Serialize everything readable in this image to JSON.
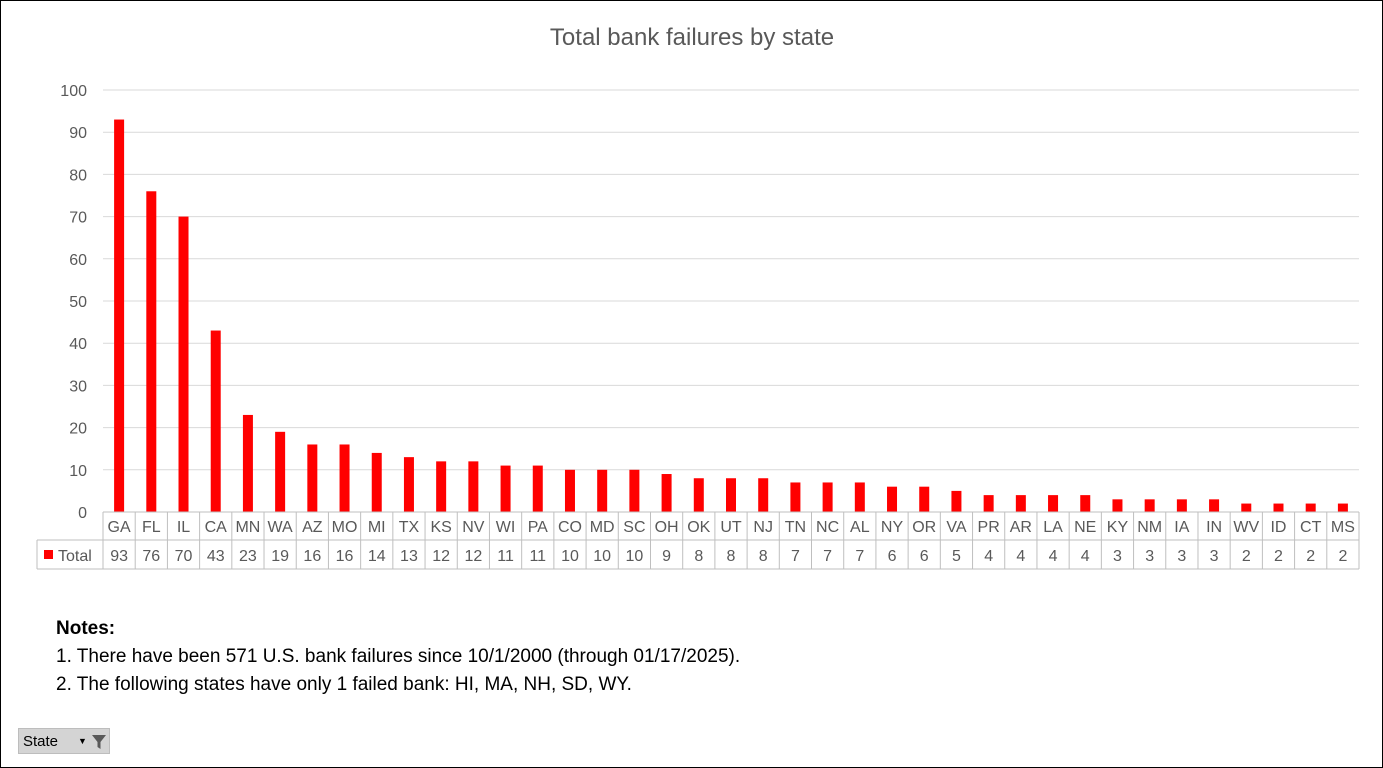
{
  "chart_data": {
    "type": "bar",
    "title": "Total bank failures by state",
    "xlabel": "",
    "ylabel": "",
    "ylim": [
      0,
      100
    ],
    "yticks": [
      0,
      10,
      20,
      30,
      40,
      50,
      60,
      70,
      80,
      90,
      100
    ],
    "grid": true,
    "categories": [
      "GA",
      "FL",
      "IL",
      "CA",
      "MN",
      "WA",
      "AZ",
      "MO",
      "MI",
      "TX",
      "KS",
      "NV",
      "WI",
      "PA",
      "CO",
      "MD",
      "SC",
      "OH",
      "OK",
      "UT",
      "NJ",
      "TN",
      "NC",
      "AL",
      "NY",
      "OR",
      "VA",
      "PR",
      "AR",
      "LA",
      "NE",
      "KY",
      "NM",
      "IA",
      "IN",
      "WV",
      "ID",
      "CT",
      "MS"
    ],
    "series": [
      {
        "name": "Total",
        "color": "#ff0000",
        "values": [
          93,
          76,
          70,
          43,
          23,
          19,
          16,
          16,
          14,
          13,
          12,
          12,
          11,
          11,
          10,
          10,
          10,
          9,
          8,
          8,
          8,
          7,
          7,
          7,
          6,
          6,
          5,
          4,
          4,
          4,
          4,
          3,
          3,
          3,
          3,
          2,
          2,
          2,
          2
        ]
      }
    ],
    "data_table": true
  },
  "notes": {
    "heading": "Notes:",
    "items": [
      "1. There have been 571 U.S. bank failures since 10/1/2000 (through 01/17/2025).",
      "2. The following states have only 1 failed bank: HI, MA, NH, SD, WY."
    ]
  },
  "filter_button": {
    "label": "State",
    "icon": "funnel-icon"
  }
}
